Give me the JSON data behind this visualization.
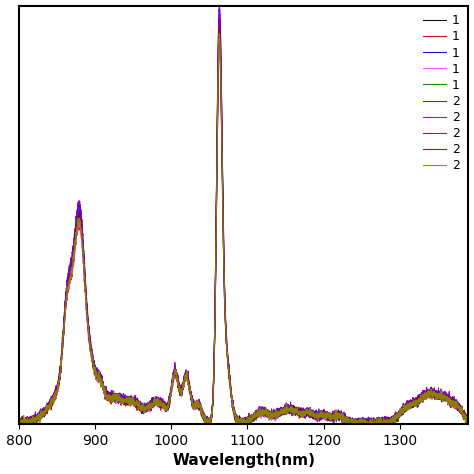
{
  "title": "",
  "xlabel": "Wavelength(nm)",
  "ylabel": "",
  "xlim": [
    800,
    1390
  ],
  "ylim": [
    0,
    1.08
  ],
  "legend_labels": [
    "1",
    "1",
    "1",
    "1",
    "1",
    "2",
    "2",
    "2",
    "2",
    "2"
  ],
  "line_colors": [
    "#000000",
    "#cc0000",
    "#0000cc",
    "#ff44ff",
    "#008800",
    "#2222cc",
    "#aa00cc",
    "#7700bb",
    "#881111",
    "#888800"
  ],
  "background_color": "#ffffff",
  "figsize": [
    4.74,
    4.74
  ],
  "dpi": 100
}
